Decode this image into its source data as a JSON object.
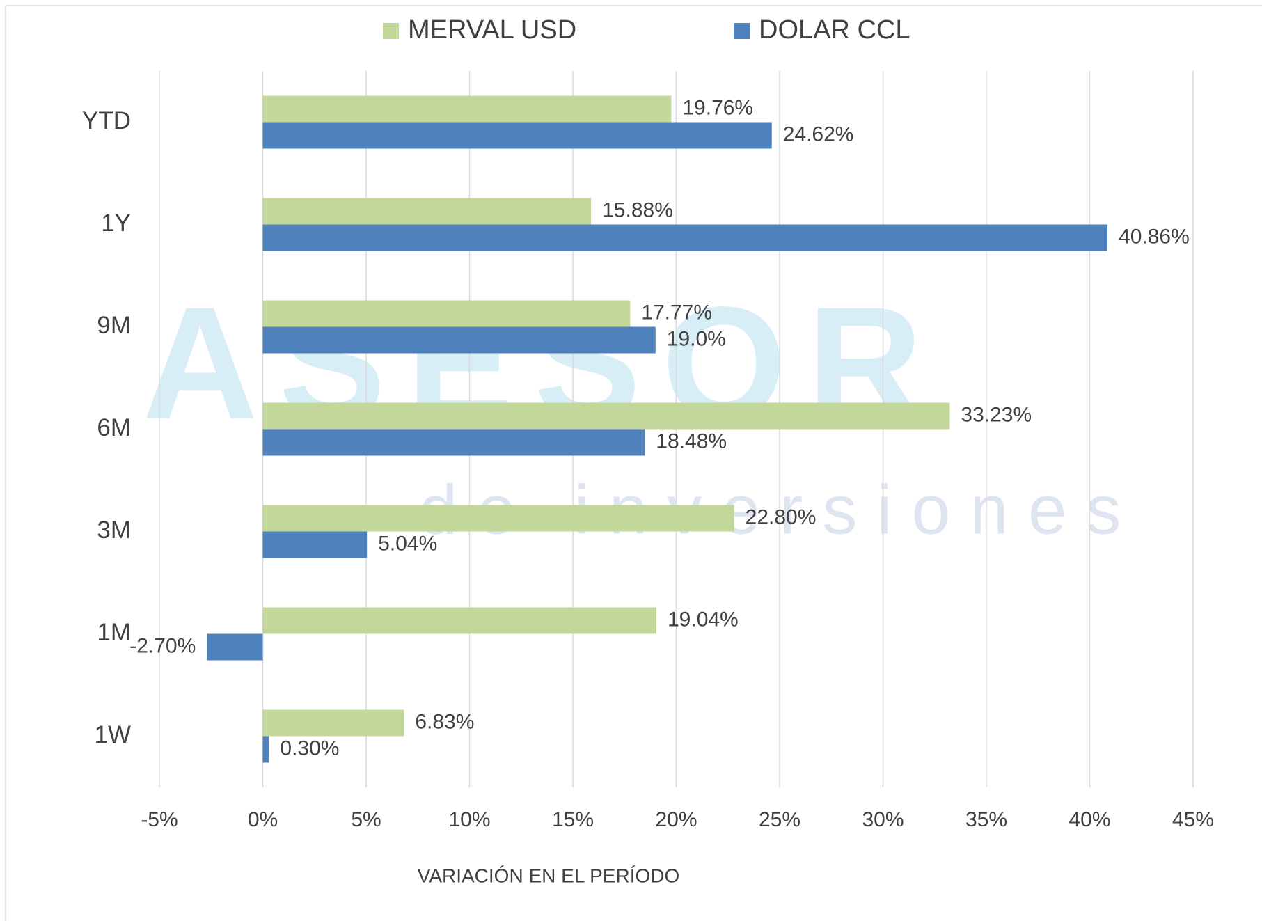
{
  "chart_data": {
    "type": "hbar",
    "watermark": {
      "brand": "ASESOR",
      "tagline": "de inversiones"
    },
    "categories": [
      "YTD",
      "1Y",
      "9M",
      "6M",
      "3M",
      "1M",
      "1W"
    ],
    "series": [
      {
        "name": "MERVAL USD",
        "color": "#c4d79b",
        "values": [
          19.76,
          15.88,
          17.77,
          33.23,
          22.8,
          19.04,
          6.83
        ],
        "value_labels": [
          "19.76%",
          "15.88%",
          "17.77%",
          "33.23%",
          "22.80%",
          "19.04%",
          "6.83%"
        ]
      },
      {
        "name": "DOLAR CCL",
        "color": "#4f81bd",
        "values": [
          24.62,
          40.86,
          19.0,
          18.48,
          5.04,
          -2.7,
          0.3
        ],
        "value_labels": [
          "24.62%",
          "40.86%",
          "19.0%",
          "18.48%",
          "5.04%",
          "-2.70%",
          "0.30%"
        ]
      }
    ],
    "xlim": [
      -5,
      45
    ],
    "xticks": [
      {
        "value": -5,
        "label": "-5%"
      },
      {
        "value": 0,
        "label": "0%"
      },
      {
        "value": 5,
        "label": "5%"
      },
      {
        "value": 10,
        "label": "10%"
      },
      {
        "value": 15,
        "label": "15%"
      },
      {
        "value": 20,
        "label": "20%"
      },
      {
        "value": 25,
        "label": "25%"
      },
      {
        "value": 30,
        "label": "30%"
      },
      {
        "value": 35,
        "label": "35%"
      },
      {
        "value": 40,
        "label": "40%"
      },
      {
        "value": 45,
        "label": "45%"
      }
    ],
    "xlabel": "VARIACIÓN EN EL PERÍODO",
    "grid": true,
    "legend": "top"
  }
}
